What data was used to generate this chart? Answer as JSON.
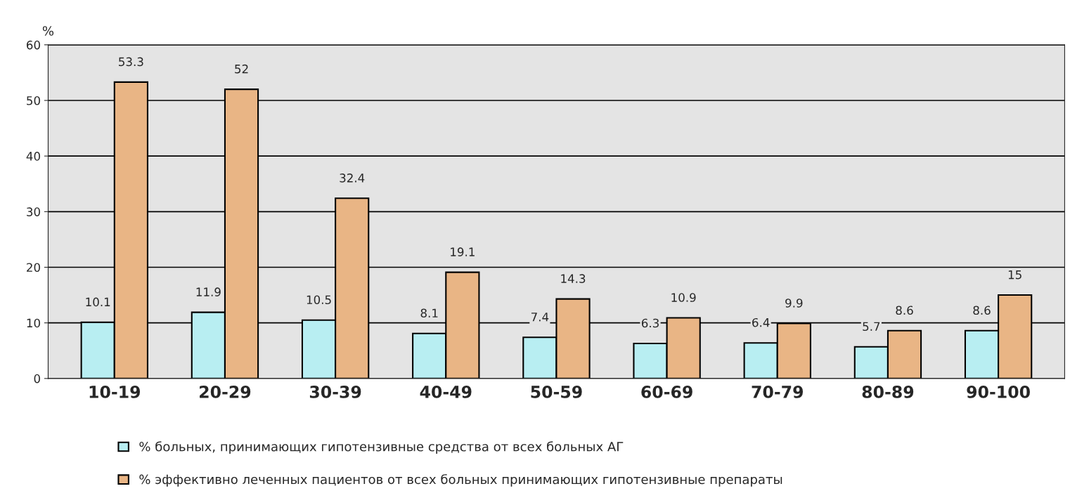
{
  "chart_data": {
    "type": "bar",
    "ylabel": "%",
    "categories": [
      "10-19",
      "20-29",
      "30-39",
      "40-49",
      "50-59",
      "60-69",
      "70-79",
      "80-89",
      "90-100"
    ],
    "series": [
      {
        "name": "% больных, принимающих гипотензивные средства от всех больных АГ",
        "color": "#b8eef2",
        "values": [
          10.1,
          11.9,
          10.5,
          8.1,
          7.4,
          6.3,
          6.4,
          5.7,
          8.6
        ]
      },
      {
        "name": "% эффективно леченных пациентов от всех больных принимающих гипотензивные препараты",
        "color": "#e9b585",
        "values": [
          53.3,
          52,
          32.4,
          19.1,
          14.3,
          10.9,
          9.9,
          8.6,
          15
        ]
      }
    ],
    "ylim": [
      0,
      60
    ],
    "yticks": [
      0,
      10,
      20,
      30,
      40,
      50,
      60
    ],
    "grid": "y",
    "data_labels": true,
    "legend": "bottom"
  }
}
